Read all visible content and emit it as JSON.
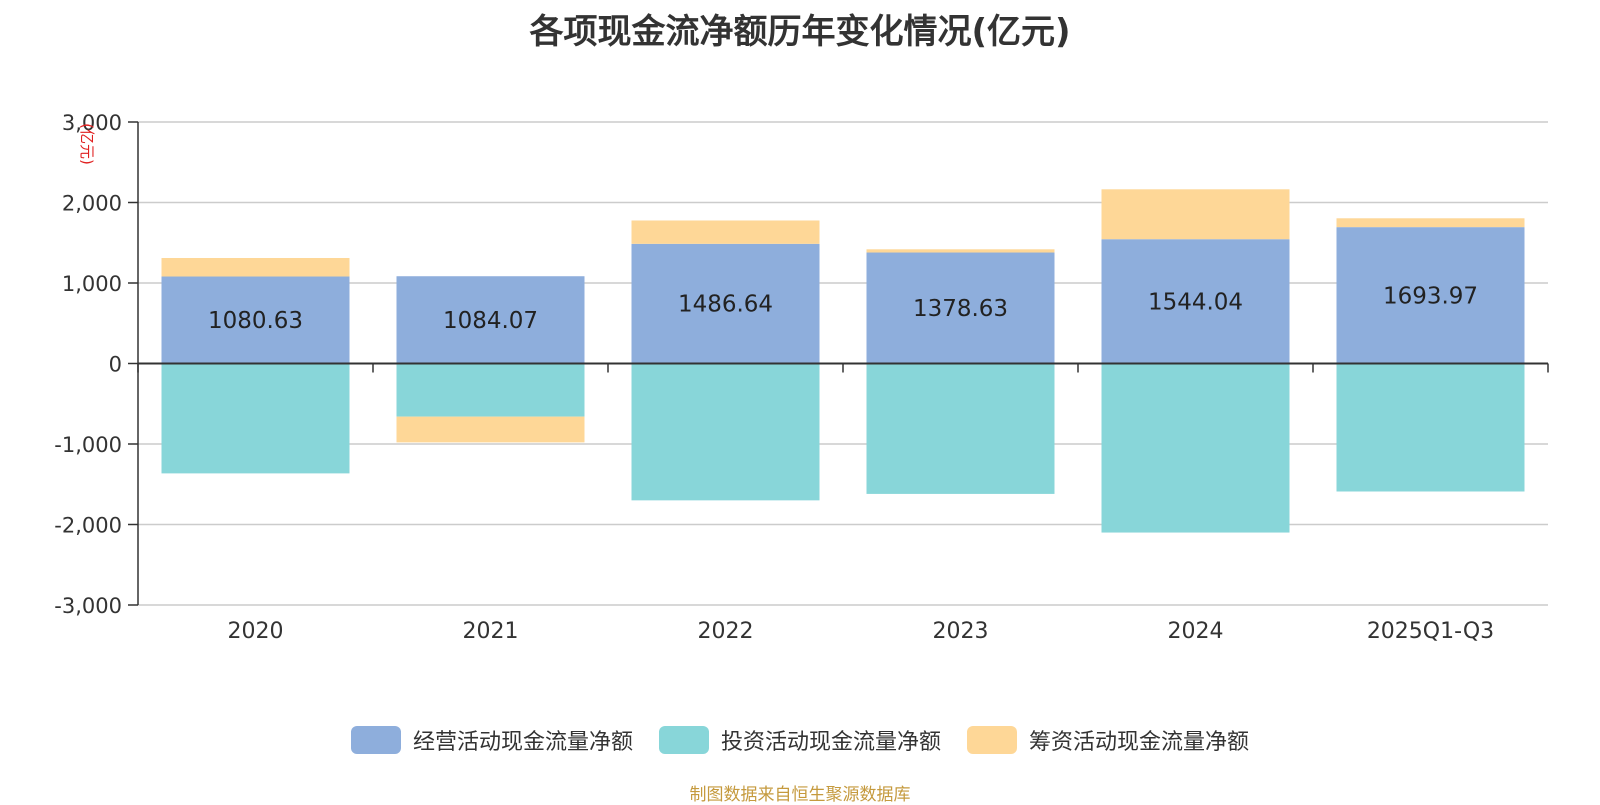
{
  "title": "各项现金流净额历年变化情况(亿元)",
  "source": "制图数据来自恒生聚源数据库",
  "chart_data": {
    "type": "bar",
    "stacked": true,
    "title": "各项现金流净额历年变化情况(亿元)",
    "ylabel": "(亿元)",
    "ylim": [
      -3000,
      3000
    ],
    "yticks": [
      3000,
      2000,
      1000,
      0,
      -1000,
      -2000,
      -3000
    ],
    "ytick_labels": [
      "3,000",
      "2,000",
      "1,000",
      "0",
      "-1,000",
      "-2,000",
      "-3,000"
    ],
    "categories": [
      "2020",
      "2021",
      "2022",
      "2023",
      "2024",
      "2025Q1-Q3"
    ],
    "grid": true,
    "legend": "bottom",
    "series": [
      {
        "name": "经营活动现金流量净额",
        "color": "#8eaedc",
        "values": [
          1080.63,
          1084.07,
          1486.64,
          1378.63,
          1544.04,
          1693.97
        ],
        "show_labels": true
      },
      {
        "name": "投资活动现金流量净额",
        "color": "#88d6d9",
        "values": [
          -1365,
          -660,
          -1700,
          -1620,
          -2100,
          -1590
        ],
        "show_labels": false
      },
      {
        "name": "筹资活动现金流量净额",
        "color": "#fed797",
        "values": [
          230,
          -320,
          290,
          40,
          620,
          110
        ],
        "show_labels": false
      }
    ]
  }
}
